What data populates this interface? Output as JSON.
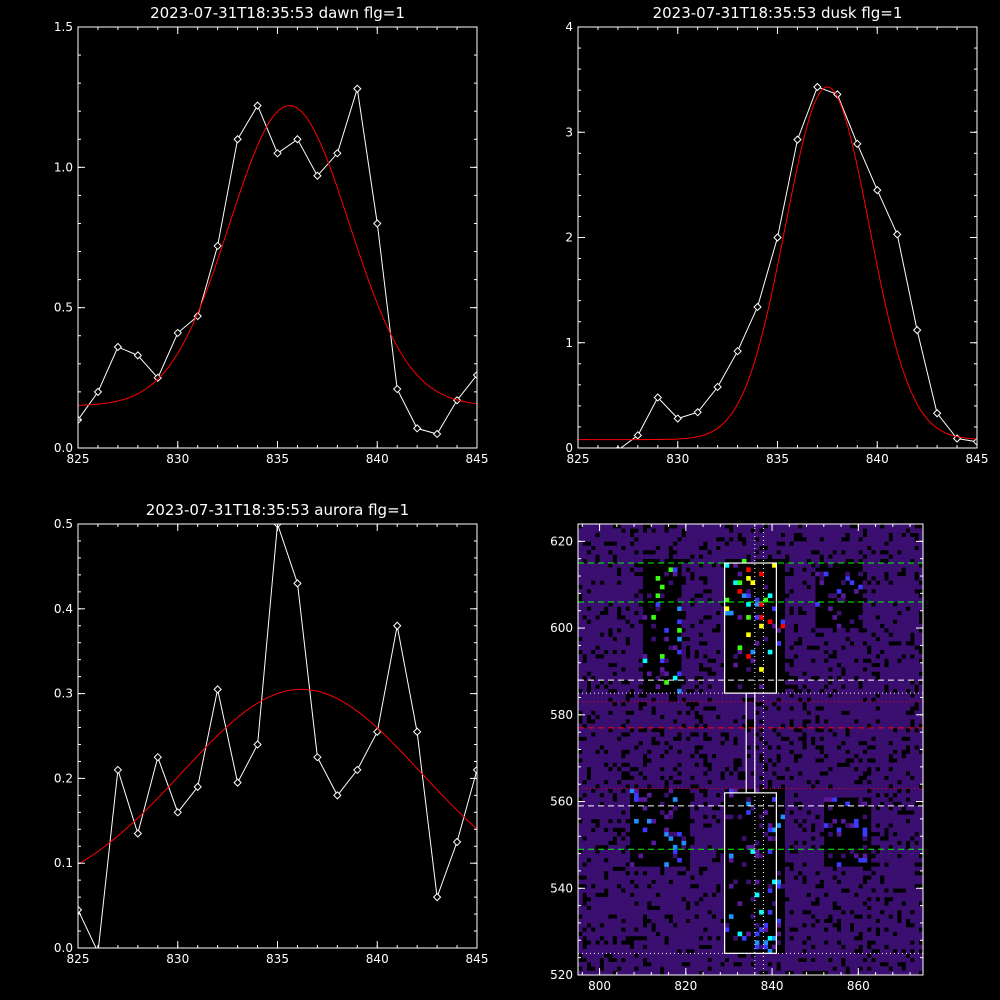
{
  "chart_data": [
    {
      "type": "line",
      "title": "2023-07-31T18:35:53 dawn flg=1",
      "xlim": [
        825,
        845
      ],
      "ylim": [
        0,
        1.5
      ],
      "xticks": [
        "825",
        "830",
        "835",
        "840",
        "845"
      ],
      "yticks": [
        "0.0",
        "0.5",
        "1.0",
        "1.5"
      ],
      "series": [
        {
          "color": "#ffffff",
          "marker": "diamond",
          "x": [
            825,
            826,
            827,
            828,
            829,
            830,
            831,
            832,
            833,
            834,
            835,
            836,
            837,
            838,
            839,
            840,
            841,
            842,
            843,
            844,
            845
          ],
          "y": [
            0.1,
            0.2,
            0.36,
            0.33,
            0.25,
            0.41,
            0.47,
            0.72,
            1.1,
            1.22,
            1.05,
            1.1,
            0.97,
            1.05,
            1.28,
            0.8,
            0.21,
            0.07,
            0.05,
            0.17,
            0.26
          ]
        },
        {
          "color": "#ff0000",
          "fit": "gaussian",
          "peak": 1.07,
          "center": 835.6,
          "sigma": 3.0,
          "offset": 0.15
        }
      ]
    },
    {
      "type": "line",
      "title": "2023-07-31T18:35:53 dusk flg=1",
      "xlim": [
        825,
        845
      ],
      "ylim": [
        0,
        4
      ],
      "xticks": [
        "825",
        "830",
        "835",
        "840",
        "845"
      ],
      "yticks": [
        "0",
        "1",
        "2",
        "3",
        "4"
      ],
      "series": [
        {
          "color": "#ffffff",
          "marker": "diamond",
          "x": [
            825,
            826,
            827,
            828,
            829,
            830,
            831,
            832,
            833,
            834,
            835,
            836,
            837,
            838,
            839,
            840,
            841,
            842,
            843,
            844,
            845
          ],
          "y": [
            -0.05,
            -0.03,
            -0.02,
            0.12,
            0.48,
            0.28,
            0.34,
            0.58,
            0.92,
            1.34,
            2.0,
            2.93,
            3.43,
            3.36,
            2.89,
            2.45,
            2.03,
            1.12,
            0.33,
            0.09,
            0.06
          ]
        },
        {
          "color": "#ff0000",
          "fit": "gaussian",
          "peak": 3.35,
          "center": 837.5,
          "sigma": 2.1,
          "offset": 0.08
        }
      ]
    },
    {
      "type": "line",
      "title": "2023-07-31T18:35:53 aurora flg=1",
      "xlim": [
        825,
        845
      ],
      "ylim": [
        0,
        0.5
      ],
      "xticks": [
        "825",
        "830",
        "835",
        "840",
        "845"
      ],
      "yticks": [
        "0.0",
        "0.1",
        "0.2",
        "0.3",
        "0.4",
        "0.5"
      ],
      "series": [
        {
          "color": "#ffffff",
          "marker": "diamond",
          "x": [
            825,
            826,
            827,
            828,
            829,
            830,
            831,
            832,
            833,
            834,
            835,
            836,
            837,
            838,
            839,
            840,
            841,
            842,
            843,
            844,
            845
          ],
          "y": [
            0.045,
            -0.005,
            0.21,
            0.135,
            0.225,
            0.16,
            0.19,
            0.305,
            0.195,
            0.24,
            0.5,
            0.43,
            0.225,
            0.18,
            0.21,
            0.255,
            0.38,
            0.255,
            0.06,
            0.125,
            0.21
          ]
        },
        {
          "color": "#ff0000",
          "fit": "gaussian",
          "peak": 0.25,
          "center": 836.2,
          "sigma": 6.0,
          "offset": 0.055
        }
      ]
    },
    {
      "type": "heatmap",
      "title": "",
      "xlim": [
        795,
        875
      ],
      "ylim": [
        520,
        624
      ],
      "xticks": [
        "800",
        "820",
        "840",
        "860"
      ],
      "yticks": [
        "520",
        "540",
        "560",
        "580",
        "600",
        "620"
      ],
      "colormap": [
        "#000000",
        "#3b0f70",
        "#5a189a",
        "#3b3bff",
        "#1e90ff",
        "#00ffff",
        "#39ff14",
        "#ffff00",
        "#ff0000"
      ],
      "hot_regions": [
        {
          "x": [
            810,
            818
          ],
          "y": [
            585,
            615
          ],
          "level": 0.7
        },
        {
          "x": [
            829,
            842
          ],
          "y": [
            585,
            615
          ],
          "level": 0.9
        },
        {
          "x": [
            807,
            820
          ],
          "y": [
            545,
            562
          ],
          "level": 0.45
        },
        {
          "x": [
            829,
            842
          ],
          "y": [
            525,
            562
          ],
          "level": 0.55
        },
        {
          "x": [
            852,
            862
          ],
          "y": [
            545,
            560
          ],
          "level": 0.35
        },
        {
          "x": [
            850,
            860
          ],
          "y": [
            600,
            614
          ],
          "level": 0.35
        }
      ],
      "boxes": [
        {
          "color": "#ffffff",
          "x": [
            829,
            841
          ],
          "y": [
            585,
            615
          ]
        },
        {
          "color": "#ffffff",
          "x": [
            829,
            841
          ],
          "y": [
            525,
            562
          ]
        },
        {
          "color": "#ffffff",
          "x": [
            834,
            836
          ],
          "y": [
            562,
            585
          ]
        }
      ],
      "hlines": [
        {
          "y": 615,
          "color": "#00ff00",
          "style": "dash"
        },
        {
          "y": 606,
          "color": "#00ff00",
          "style": "dash"
        },
        {
          "y": 588,
          "color": "#ffffff",
          "style": "dash"
        },
        {
          "y": 585,
          "color": "#ffffff",
          "style": "dot"
        },
        {
          "y": 583,
          "color": "#ff0000",
          "style": "dot"
        },
        {
          "y": 577,
          "color": "#ff0000",
          "style": "dash"
        },
        {
          "y": 563,
          "color": "#ff0000",
          "style": "dot"
        },
        {
          "y": 559,
          "color": "#ffffff",
          "style": "dash"
        },
        {
          "y": 549,
          "color": "#00ff00",
          "style": "dash"
        },
        {
          "y": 525,
          "color": "#ffffff",
          "style": "dot"
        }
      ],
      "vlines": [
        {
          "x": 836,
          "color": "#ffffff",
          "style": "dot"
        },
        {
          "x": 838,
          "color": "#ffffff",
          "style": "dot"
        }
      ]
    }
  ]
}
